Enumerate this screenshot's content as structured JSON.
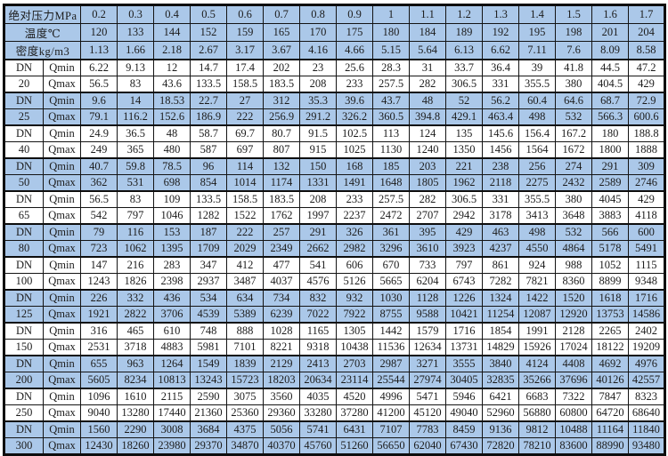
{
  "colors": {
    "shaded_row": "#abc8e9",
    "border": "#0d0d0d"
  },
  "header": {
    "pressure_label": "绝对压力MPa",
    "temperature_label": "温度℃",
    "density_label": "密度kg/m3",
    "pressure_values": [
      "0.2",
      "0.3",
      "0.4",
      "0.5",
      "0.6",
      "0.7",
      "0.8",
      "0.9",
      "1",
      "1.1",
      "1.2",
      "1.3",
      "1.4",
      "1.5",
      "1.6",
      "1.7"
    ],
    "temperature_values": [
      "120",
      "133",
      "144",
      "152",
      "159",
      "165",
      "170",
      "175",
      "180",
      "184",
      "189",
      "192",
      "195",
      "198",
      "201",
      "204"
    ],
    "density_values": [
      "1.13",
      "1.66",
      "2.18",
      "2.67",
      "3.17",
      "3.67",
      "4.16",
      "4.66",
      "5.15",
      "5.64",
      "6.13",
      "6.62",
      "7.11",
      "7.6",
      "8.09",
      "8.58"
    ]
  },
  "row_labels": {
    "dn": "DN",
    "qmin": "Qmin",
    "qmax": "Qmax"
  },
  "groups": [
    {
      "dn": "20",
      "shaded": false,
      "qmin": [
        "6.22",
        "9.13",
        "12",
        "14.7",
        "17.4",
        "202",
        "23",
        "25.6",
        "28.3",
        "31",
        "33.7",
        "36.4",
        "39",
        "41.8",
        "44.5",
        "47.2"
      ],
      "qmax": [
        "56.5",
        "83",
        "43.6",
        "133.5",
        "158.5",
        "183.5",
        "208",
        "233",
        "257.5",
        "282",
        "306.5",
        "331",
        "355.5",
        "380",
        "404.5",
        "429"
      ]
    },
    {
      "dn": "25",
      "shaded": true,
      "qmin": [
        "9.6",
        "14",
        "18.53",
        "22.7",
        "27",
        "312",
        "35.3",
        "39.6",
        "43.7",
        "48",
        "52",
        "56.2",
        "60.4",
        "64.6",
        "68.7",
        "72.9"
      ],
      "qmax": [
        "79.1",
        "116.2",
        "152.6",
        "186.9",
        "222",
        "256.9",
        "291.2",
        "326.2",
        "360.5",
        "394.8",
        "429.1",
        "463.4",
        "498",
        "532",
        "566.3",
        "600.6"
      ]
    },
    {
      "dn": "40",
      "shaded": false,
      "qmin": [
        "24.9",
        "36.5",
        "48",
        "58.7",
        "69.7",
        "80.7",
        "91.5",
        "102.5",
        "113",
        "124",
        "135",
        "145.6",
        "156.4",
        "167.2",
        "180",
        "188.8"
      ],
      "qmax": [
        "249",
        "365",
        "480",
        "587",
        "697",
        "807",
        "915",
        "1025",
        "1130",
        "1240",
        "1350",
        "1456",
        "1564",
        "1672",
        "1800",
        "1888"
      ]
    },
    {
      "dn": "50",
      "shaded": true,
      "qmin": [
        "40.7",
        "59.8",
        "78.5",
        "96",
        "114",
        "132",
        "150",
        "168",
        "185",
        "203",
        "221",
        "238",
        "256",
        "274",
        "291",
        "309"
      ],
      "qmax": [
        "362",
        "531",
        "698",
        "854",
        "1014",
        "1174",
        "1331",
        "1491",
        "1648",
        "1805",
        "1962",
        "2118",
        "2275",
        "2432",
        "2589",
        "2746"
      ]
    },
    {
      "dn": "65",
      "shaded": false,
      "qmin": [
        "56.5",
        "83",
        "109",
        "133.5",
        "158.5",
        "183.5",
        "208",
        "233",
        "257.5",
        "282",
        "306.5",
        "331",
        "355.5",
        "380",
        "4045",
        "429"
      ],
      "qmax": [
        "542",
        "797",
        "1046",
        "1282",
        "1522",
        "1762",
        "1997",
        "2237",
        "2472",
        "2707",
        "2942",
        "3178",
        "3413",
        "3648",
        "3883",
        "4118"
      ]
    },
    {
      "dn": "80",
      "shaded": true,
      "qmin": [
        "79",
        "116",
        "153",
        "187",
        "222",
        "257",
        "291",
        "326",
        "361",
        "395",
        "429",
        "463",
        "498",
        "532",
        "566",
        "600"
      ],
      "qmax": [
        "723",
        "1062",
        "1395",
        "1709",
        "2029",
        "2349",
        "2662",
        "2982",
        "3296",
        "3610",
        "3923",
        "4237",
        "4550",
        "4864",
        "5178",
        "5491"
      ]
    },
    {
      "dn": "100",
      "shaded": false,
      "qmin": [
        "147",
        "216",
        "283",
        "347",
        "412",
        "477",
        "541",
        "606",
        "670",
        "733",
        "797",
        "861",
        "924",
        "988",
        "1052",
        "1115"
      ],
      "qmax": [
        "1243",
        "1826",
        "2398",
        "2937",
        "3487",
        "4037",
        "4576",
        "5126",
        "5665",
        "6204",
        "6743",
        "7282",
        "7821",
        "8360",
        "8899",
        "9348"
      ]
    },
    {
      "dn": "125",
      "shaded": true,
      "qmin": [
        "226",
        "332",
        "436",
        "534",
        "634",
        "734",
        "832",
        "932",
        "1030",
        "1128",
        "1226",
        "1324",
        "1422",
        "1520",
        "1618",
        "1716"
      ],
      "qmax": [
        "1921",
        "2822",
        "3706",
        "4539",
        "5389",
        "6239",
        "7022",
        "7922",
        "8755",
        "9588",
        "10421",
        "11254",
        "12087",
        "12920",
        "13753",
        "14586"
      ]
    },
    {
      "dn": "150",
      "shaded": false,
      "qmin": [
        "316",
        "465",
        "610",
        "748",
        "888",
        "1028",
        "1165",
        "1305",
        "1442",
        "1579",
        "1716",
        "1854",
        "1991",
        "2128",
        "2265",
        "2402"
      ],
      "qmax": [
        "2531",
        "3718",
        "4883",
        "5981",
        "7101",
        "8221",
        "9318",
        "10438",
        "11536",
        "12634",
        "13731",
        "14829",
        "15926",
        "17024",
        "18122",
        "19209"
      ]
    },
    {
      "dn": "200",
      "shaded": true,
      "qmin": [
        "655",
        "963",
        "1264",
        "1549",
        "1839",
        "2129",
        "2413",
        "2703",
        "2987",
        "3271",
        "3555",
        "3840",
        "4124",
        "4408",
        "4692",
        "4976"
      ],
      "qmax": [
        "5605",
        "8234",
        "10813",
        "13243",
        "15723",
        "18203",
        "20634",
        "23114",
        "25544",
        "27974",
        "30405",
        "32835",
        "35266",
        "37696",
        "40126",
        "42557"
      ]
    },
    {
      "dn": "250",
      "shaded": false,
      "qmin": [
        "1096",
        "1610",
        "2115",
        "2590",
        "3075",
        "3560",
        "4035",
        "4520",
        "4996",
        "5471",
        "5946",
        "6421",
        "6683",
        "7322",
        "7847",
        "8323"
      ],
      "qmax": [
        "9040",
        "13280",
        "17440",
        "21360",
        "25360",
        "29360",
        "33280",
        "37280",
        "41200",
        "45120",
        "49040",
        "52960",
        "56880",
        "60800",
        "64720",
        "68640"
      ]
    },
    {
      "dn": "300",
      "shaded": true,
      "qmin": [
        "1560",
        "2290",
        "3008",
        "3684",
        "4375",
        "5056",
        "5741",
        "6431",
        "7107",
        "7783",
        "8459",
        "9136",
        "9812",
        "10488",
        "11164",
        "11840"
      ],
      "qmax": [
        "12430",
        "18260",
        "23980",
        "29370",
        "34870",
        "40370",
        "45760",
        "51260",
        "56650",
        "62040",
        "67430",
        "72820",
        "78210",
        "83600",
        "88990",
        "93480"
      ]
    }
  ]
}
